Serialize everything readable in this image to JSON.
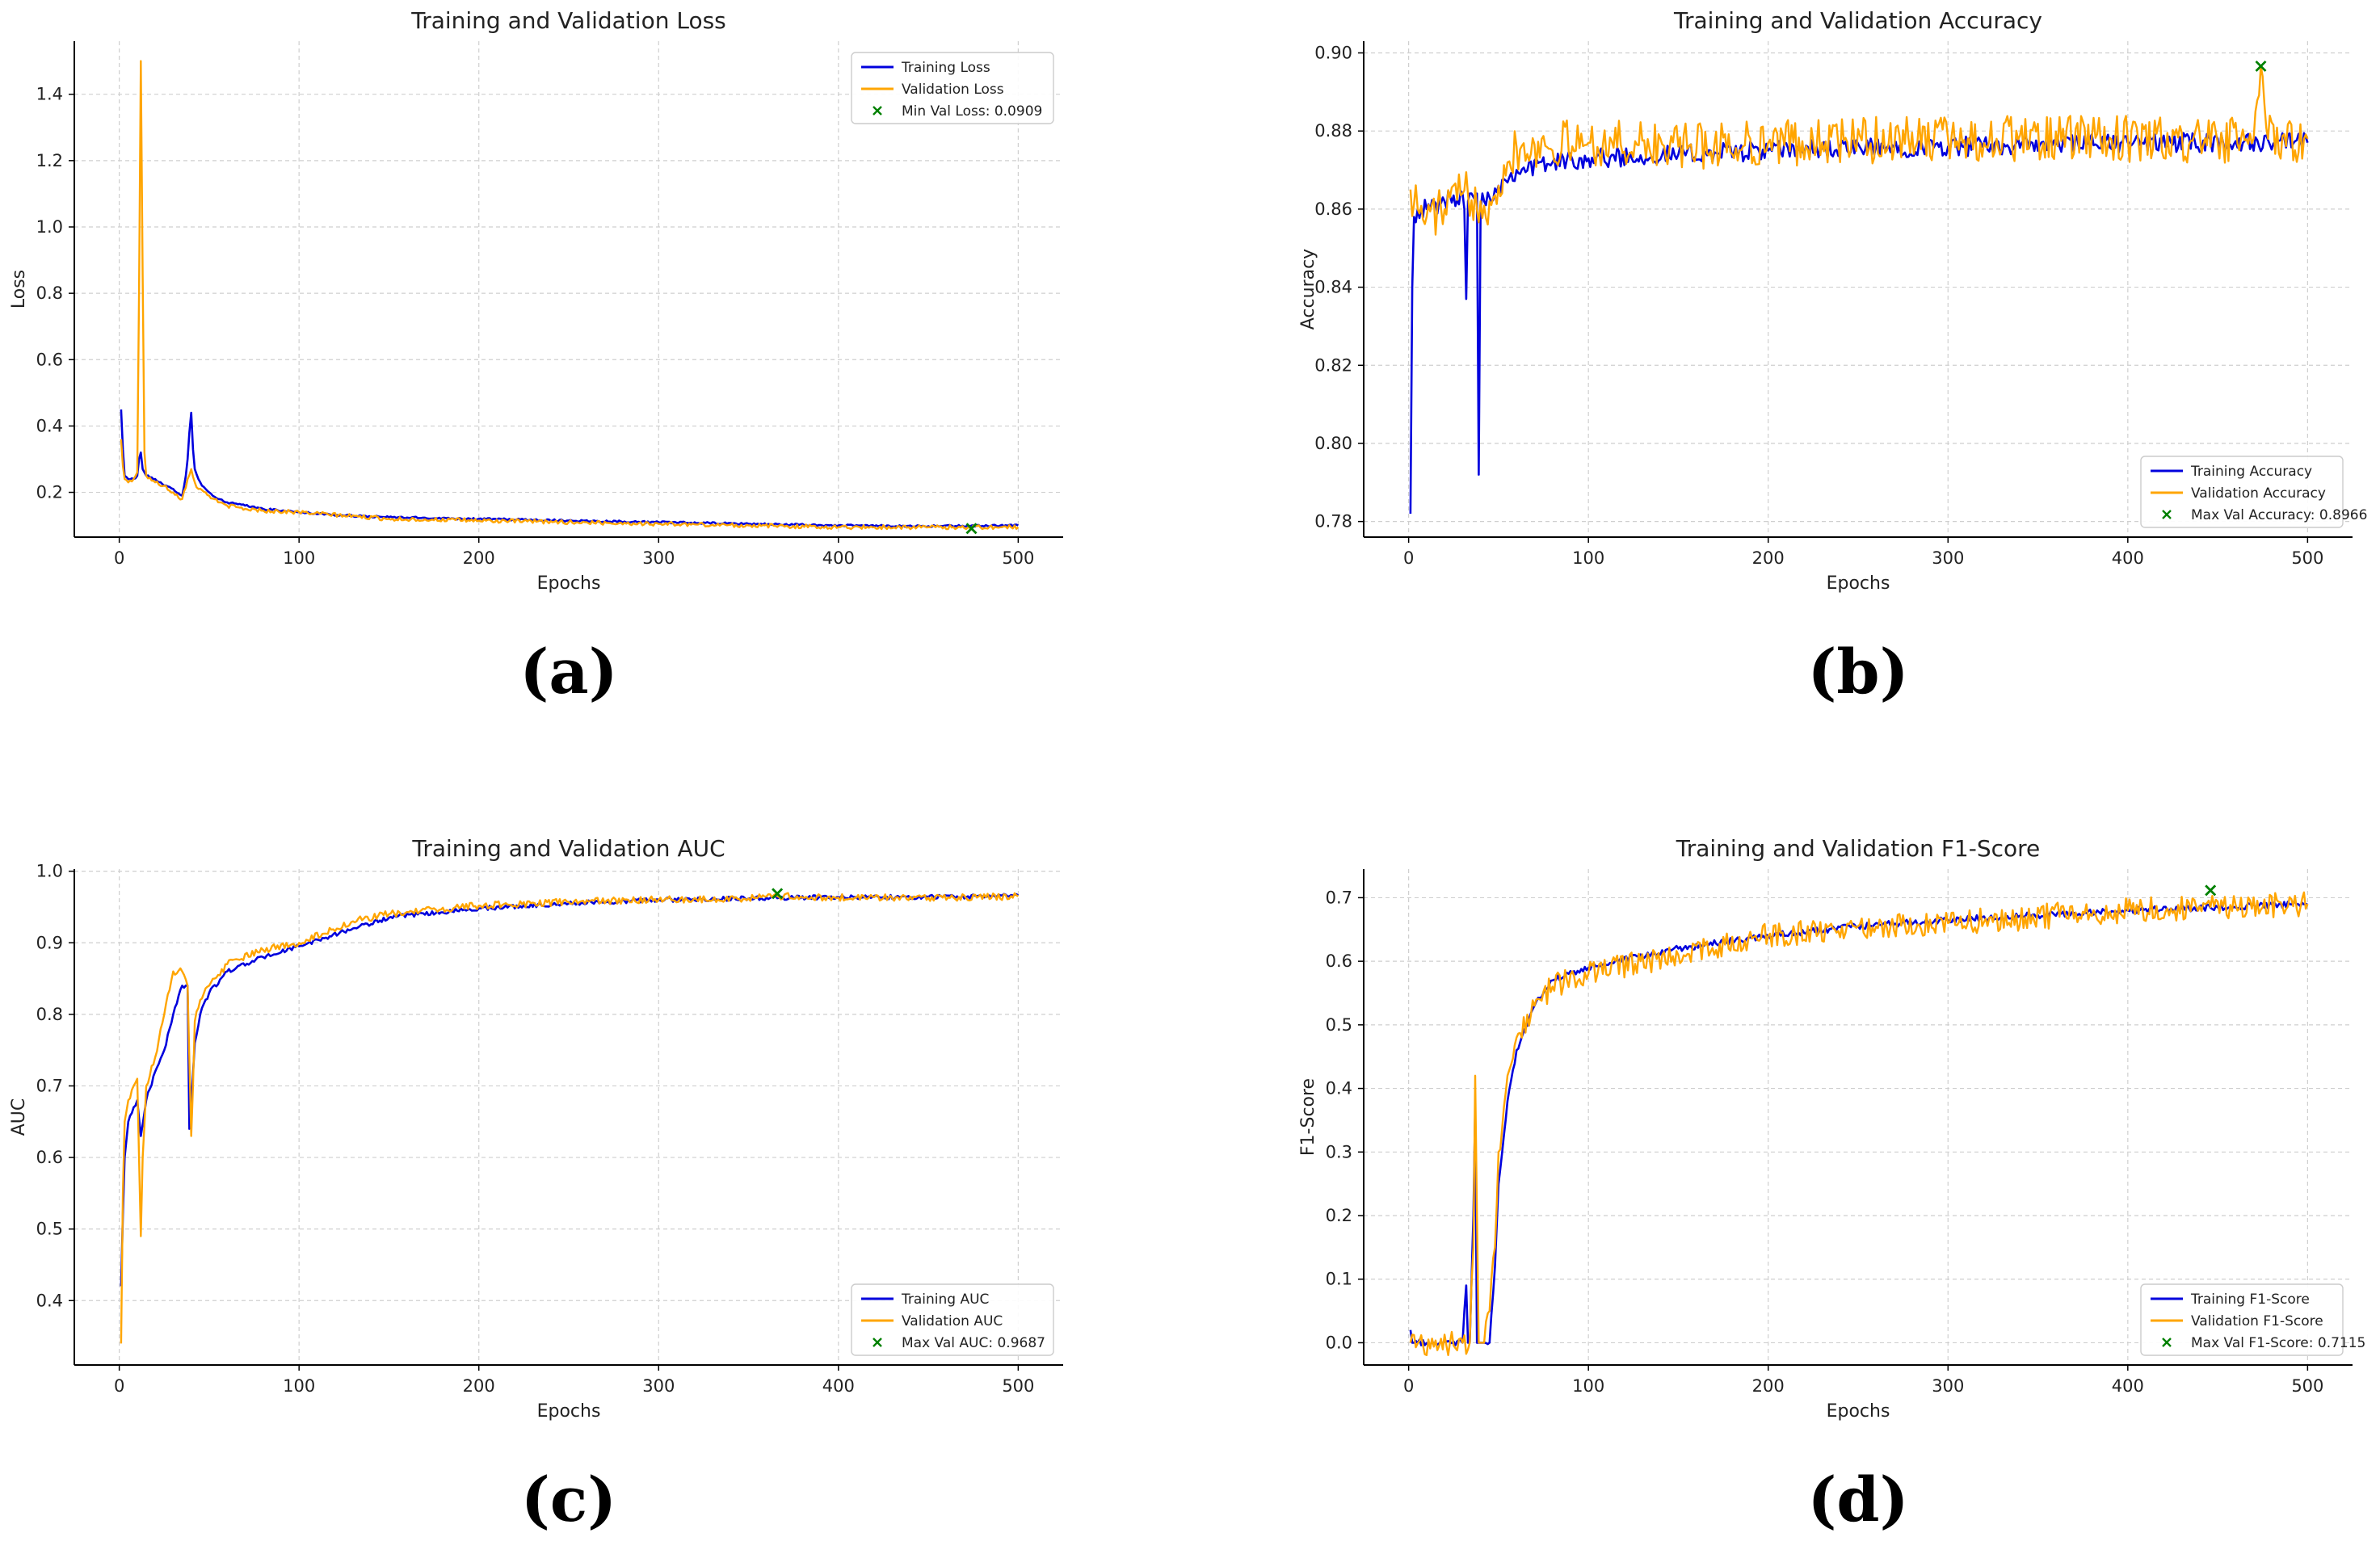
{
  "colors": {
    "train": "#0000dd",
    "val": "#ffa500",
    "marker": "#008000",
    "grid": "#cfcfcf"
  },
  "chart_data": [
    {
      "type": "line",
      "panel_label": "(a)",
      "title": "Training and Validation Loss",
      "xlabel": "Epochs",
      "ylabel": "Loss",
      "xlim": [
        -25,
        525
      ],
      "ylim": [
        0.065,
        1.56
      ],
      "xticks": [
        0,
        100,
        200,
        300,
        400,
        500
      ],
      "yticks": [
        0.2,
        0.4,
        0.6,
        0.8,
        1.0,
        1.2,
        1.4
      ],
      "ytick_labels": [
        "0.2",
        "0.4",
        "0.6",
        "0.8",
        "1.0",
        "1.2",
        "1.4"
      ],
      "grid": true,
      "legend_position": "top-right",
      "series": [
        {
          "name": "Training Loss",
          "key": "train",
          "x": [
            1,
            2,
            3,
            5,
            8,
            10,
            11,
            12,
            13,
            15,
            20,
            25,
            30,
            35,
            37,
            38,
            39,
            40,
            41,
            42,
            44,
            46,
            48,
            50,
            55,
            60,
            70,
            80,
            100,
            125,
            150,
            200,
            250,
            300,
            350,
            400,
            450,
            500
          ],
          "y": [
            0.45,
            0.33,
            0.25,
            0.24,
            0.24,
            0.25,
            0.3,
            0.32,
            0.27,
            0.25,
            0.24,
            0.22,
            0.21,
            0.19,
            0.25,
            0.3,
            0.38,
            0.44,
            0.33,
            0.27,
            0.24,
            0.22,
            0.21,
            0.2,
            0.18,
            0.17,
            0.16,
            0.15,
            0.14,
            0.13,
            0.125,
            0.12,
            0.115,
            0.11,
            0.105,
            0.1,
            0.098,
            0.1
          ],
          "noise": 0.003
        },
        {
          "name": "Validation Loss",
          "key": "val",
          "x": [
            1,
            2,
            3,
            5,
            8,
            10,
            11,
            12,
            13,
            14,
            15,
            20,
            25,
            30,
            35,
            38,
            40,
            42,
            44,
            48,
            50,
            55,
            60,
            70,
            80,
            100,
            125,
            150,
            200,
            250,
            300,
            350,
            400,
            450,
            500
          ],
          "y": [
            0.36,
            0.28,
            0.24,
            0.23,
            0.24,
            0.26,
            0.8,
            1.5,
            0.85,
            0.32,
            0.25,
            0.23,
            0.22,
            0.2,
            0.18,
            0.24,
            0.27,
            0.23,
            0.21,
            0.2,
            0.19,
            0.17,
            0.16,
            0.15,
            0.145,
            0.14,
            0.13,
            0.12,
            0.115,
            0.11,
            0.105,
            0.1,
            0.095,
            0.095,
            0.095
          ],
          "noise": 0.006
        }
      ],
      "marker": {
        "label": "Min Val Loss: 0.0909",
        "x": 474,
        "y": 0.0909
      }
    },
    {
      "type": "line",
      "panel_label": "(b)",
      "title": "Training and Validation Accuracy",
      "xlabel": "Epochs",
      "ylabel": "Accuracy",
      "xlim": [
        -25,
        525
      ],
      "ylim": [
        0.776,
        0.903
      ],
      "xticks": [
        0,
        100,
        200,
        300,
        400,
        500
      ],
      "yticks": [
        0.78,
        0.8,
        0.82,
        0.84,
        0.86,
        0.88,
        0.9
      ],
      "ytick_labels": [
        "0.78",
        "0.80",
        "0.82",
        "0.84",
        "0.86",
        "0.88",
        "0.90"
      ],
      "grid": true,
      "legend_position": "bottom-right",
      "series": [
        {
          "name": "Training Accuracy",
          "key": "train",
          "x": [
            1,
            2,
            3,
            5,
            10,
            20,
            30,
            31,
            32,
            33,
            34,
            35,
            38,
            39,
            40,
            41,
            42,
            45,
            50,
            60,
            80,
            100,
            150,
            200,
            300,
            400,
            500
          ],
          "y": [
            0.782,
            0.84,
            0.858,
            0.86,
            0.86,
            0.862,
            0.864,
            0.86,
            0.837,
            0.862,
            0.864,
            0.864,
            0.864,
            0.792,
            0.86,
            0.864,
            0.862,
            0.863,
            0.866,
            0.87,
            0.872,
            0.873,
            0.874,
            0.875,
            0.876,
            0.877,
            0.877
          ],
          "noise": 0.0025
        },
        {
          "name": "Validation Accuracy",
          "key": "val",
          "x": [
            1,
            5,
            10,
            20,
            30,
            40,
            45,
            50,
            55,
            60,
            100,
            150,
            200,
            300,
            400,
            450,
            470,
            474,
            478,
            500
          ],
          "y": [
            0.865,
            0.86,
            0.858,
            0.86,
            0.864,
            0.862,
            0.862,
            0.866,
            0.872,
            0.876,
            0.877,
            0.876,
            0.877,
            0.878,
            0.878,
            0.877,
            0.878,
            0.8966,
            0.878,
            0.878
          ],
          "noise": 0.006
        }
      ],
      "marker": {
        "label": "Max Val Accuracy: 0.8966",
        "x": 474,
        "y": 0.8966
      }
    },
    {
      "type": "line",
      "panel_label": "(c)",
      "title": "Training and Validation AUC",
      "xlabel": "Epochs",
      "ylabel": "AUC",
      "xlim": [
        -25,
        525
      ],
      "ylim": [
        0.31,
        1.003
      ],
      "xticks": [
        0,
        100,
        200,
        300,
        400,
        500
      ],
      "yticks": [
        0.4,
        0.5,
        0.6,
        0.7,
        0.8,
        0.9,
        1.0
      ],
      "ytick_labels": [
        "0.4",
        "0.5",
        "0.6",
        "0.7",
        "0.8",
        "0.9",
        "1.0"
      ],
      "grid": true,
      "legend_position": "bottom-right",
      "series": [
        {
          "name": "Training AUC",
          "key": "train",
          "x": [
            1,
            2,
            3,
            5,
            8,
            10,
            12,
            15,
            20,
            25,
            30,
            35,
            38,
            39,
            40,
            42,
            45,
            50,
            60,
            80,
            100,
            130,
            150,
            200,
            250,
            300,
            350,
            400,
            450,
            500
          ],
          "y": [
            0.42,
            0.52,
            0.6,
            0.65,
            0.67,
            0.68,
            0.63,
            0.68,
            0.72,
            0.75,
            0.8,
            0.84,
            0.84,
            0.64,
            0.68,
            0.76,
            0.8,
            0.83,
            0.86,
            0.88,
            0.895,
            0.92,
            0.935,
            0.948,
            0.955,
            0.96,
            0.962,
            0.964,
            0.964,
            0.966
          ],
          "noise": 0.003
        },
        {
          "name": "Validation AUC",
          "key": "val",
          "x": [
            1,
            2,
            3,
            5,
            8,
            10,
            11,
            12,
            13,
            15,
            20,
            25,
            30,
            35,
            38,
            40,
            41,
            42,
            45,
            50,
            60,
            80,
            100,
            130,
            150,
            200,
            250,
            300,
            350,
            366,
            400,
            450,
            500
          ],
          "y": [
            0.34,
            0.55,
            0.65,
            0.68,
            0.7,
            0.71,
            0.6,
            0.49,
            0.6,
            0.7,
            0.74,
            0.8,
            0.86,
            0.86,
            0.84,
            0.63,
            0.7,
            0.79,
            0.82,
            0.84,
            0.87,
            0.89,
            0.9,
            0.93,
            0.94,
            0.952,
            0.957,
            0.96,
            0.962,
            0.965,
            0.963,
            0.963,
            0.965
          ],
          "noise": 0.005
        }
      ],
      "marker": {
        "label": "Max Val AUC: 0.9687",
        "x": 366,
        "y": 0.9687
      }
    },
    {
      "type": "line",
      "panel_label": "(d)",
      "title": "Training and Validation F1-Score",
      "xlabel": "Epochs",
      "ylabel": "F1-Score",
      "xlim": [
        -25,
        525
      ],
      "ylim": [
        -0.035,
        0.745
      ],
      "xticks": [
        0,
        100,
        200,
        300,
        400,
        500
      ],
      "yticks": [
        0.0,
        0.1,
        0.2,
        0.3,
        0.4,
        0.5,
        0.6,
        0.7
      ],
      "ytick_labels": [
        "0.0",
        "0.1",
        "0.2",
        "0.3",
        "0.4",
        "0.5",
        "0.6",
        "0.7"
      ],
      "grid": true,
      "legend_position": "bottom-right",
      "series": [
        {
          "name": "Training F1-Score",
          "key": "train",
          "x": [
            1,
            2,
            3,
            30,
            31,
            32,
            33,
            34,
            35,
            36,
            37,
            38,
            39,
            40,
            41,
            42,
            45,
            48,
            50,
            55,
            60,
            70,
            80,
            100,
            150,
            200,
            250,
            300,
            400,
            450,
            500
          ],
          "y": [
            0.02,
            0.0,
            0.0,
            0.0,
            0.05,
            0.09,
            0.0,
            0.0,
            0.1,
            0.2,
            0.37,
            0.0,
            0.0,
            0.0,
            0.0,
            0.0,
            0.0,
            0.12,
            0.25,
            0.38,
            0.46,
            0.53,
            0.57,
            0.59,
            0.62,
            0.64,
            0.655,
            0.665,
            0.68,
            0.685,
            0.69
          ],
          "noise": 0.005
        },
        {
          "name": "Validation F1-Score",
          "key": "val",
          "x": [
            1,
            30,
            34,
            36,
            37,
            38,
            39,
            40,
            41,
            42,
            45,
            48,
            50,
            55,
            60,
            70,
            80,
            100,
            150,
            200,
            250,
            300,
            400,
            446,
            500
          ],
          "y": [
            0.0,
            0.0,
            0.0,
            0.15,
            0.42,
            0.2,
            0.0,
            0.0,
            0.0,
            0.0,
            0.05,
            0.15,
            0.3,
            0.42,
            0.48,
            0.53,
            0.56,
            0.58,
            0.61,
            0.64,
            0.655,
            0.66,
            0.68,
            0.685,
            0.69
          ],
          "noise": 0.02
        }
      ],
      "marker": {
        "label": "Max Val F1-Score: 0.7115",
        "x": 446,
        "y": 0.7115
      }
    }
  ]
}
